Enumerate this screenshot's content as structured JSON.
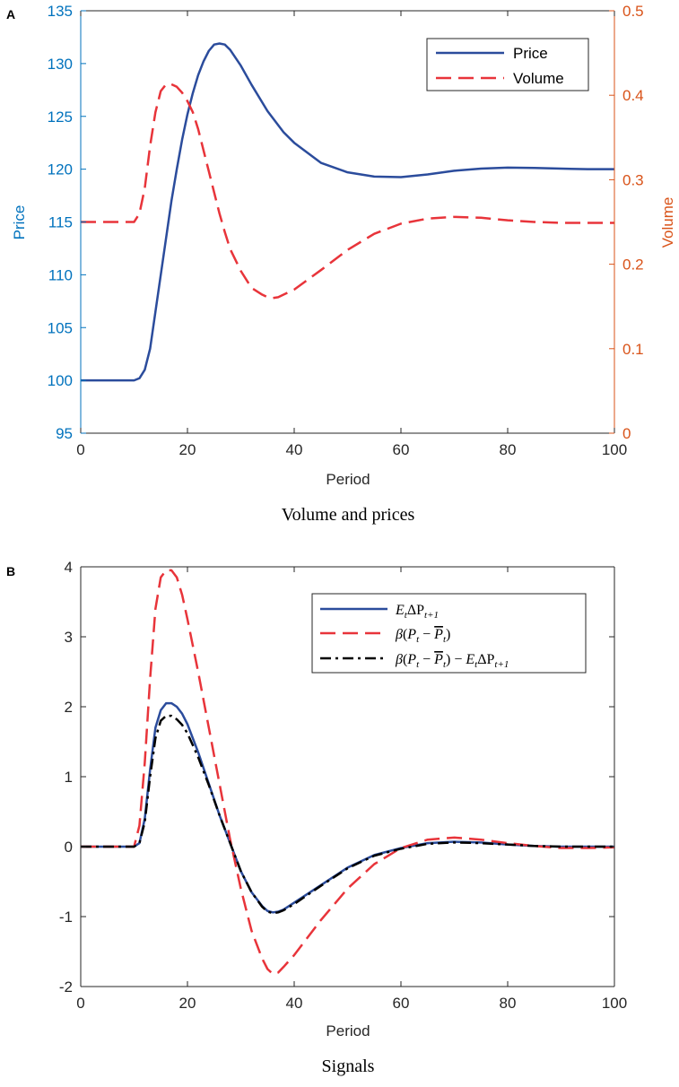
{
  "chart_data": [
    {
      "panel_label": "A",
      "type": "line",
      "caption": "Volume and prices",
      "xlabel": "Period",
      "ylabel": "Price",
      "ylabel_right": "Volume",
      "xlim": [
        0,
        100
      ],
      "ylim": [
        95,
        135
      ],
      "ylim_right": [
        0,
        0.5
      ],
      "xticks": [
        0,
        20,
        40,
        60,
        80,
        100
      ],
      "yticks": [
        95,
        100,
        105,
        110,
        115,
        120,
        125,
        130,
        135
      ],
      "yticks_right": [
        0,
        0.1,
        0.2,
        0.3,
        0.4,
        0.5
      ],
      "grid": false,
      "legend_position": "top-right",
      "colors": {
        "left_axis": "#0072BD",
        "right_axis": "#D95319",
        "price": "#2B4C9C",
        "volume": "#E8343A",
        "axes": "#000000"
      },
      "series": [
        {
          "name": "Price",
          "axis": "left",
          "style": "solid",
          "points": [
            [
              0,
              100
            ],
            [
              10,
              100
            ],
            [
              11,
              100.2
            ],
            [
              12,
              101
            ],
            [
              13,
              103
            ],
            [
              14,
              106.5
            ],
            [
              15,
              110
            ],
            [
              16,
              113.5
            ],
            [
              17,
              117
            ],
            [
              18,
              120
            ],
            [
              19,
              122.8
            ],
            [
              20,
              125.2
            ],
            [
              21,
              127.2
            ],
            [
              22,
              128.9
            ],
            [
              23,
              130.2
            ],
            [
              24,
              131.2
            ],
            [
              25,
              131.8
            ],
            [
              26,
              131.9
            ],
            [
              27,
              131.8
            ],
            [
              28,
              131.3
            ],
            [
              30,
              129.8
            ],
            [
              32,
              128
            ],
            [
              35,
              125.5
            ],
            [
              38,
              123.5
            ],
            [
              40,
              122.5
            ],
            [
              45,
              120.6
            ],
            [
              50,
              119.7
            ],
            [
              55,
              119.3
            ],
            [
              60,
              119.25
            ],
            [
              65,
              119.5
            ],
            [
              70,
              119.85
            ],
            [
              75,
              120.05
            ],
            [
              80,
              120.15
            ],
            [
              85,
              120.12
            ],
            [
              90,
              120.05
            ],
            [
              95,
              120
            ],
            [
              100,
              120
            ]
          ]
        },
        {
          "name": "Volume",
          "axis": "right",
          "style": "dashed",
          "points": [
            [
              0,
              0.25
            ],
            [
              10,
              0.25
            ],
            [
              11,
              0.26
            ],
            [
              12,
              0.29
            ],
            [
              13,
              0.34
            ],
            [
              14,
              0.38
            ],
            [
              15,
              0.405
            ],
            [
              16,
              0.413
            ],
            [
              17,
              0.413
            ],
            [
              18,
              0.41
            ],
            [
              19,
              0.403
            ],
            [
              20,
              0.393
            ],
            [
              21,
              0.38
            ],
            [
              22,
              0.36
            ],
            [
              23,
              0.335
            ],
            [
              24,
              0.31
            ],
            [
              25,
              0.285
            ],
            [
              26,
              0.26
            ],
            [
              27,
              0.238
            ],
            [
              28,
              0.218
            ],
            [
              30,
              0.192
            ],
            [
              32,
              0.172
            ],
            [
              34,
              0.164
            ],
            [
              35,
              0.161
            ],
            [
              36,
              0.16
            ],
            [
              37,
              0.161
            ],
            [
              38,
              0.164
            ],
            [
              40,
              0.17
            ],
            [
              45,
              0.193
            ],
            [
              50,
              0.217
            ],
            [
              55,
              0.236
            ],
            [
              60,
              0.248
            ],
            [
              65,
              0.254
            ],
            [
              70,
              0.256
            ],
            [
              75,
              0.255
            ],
            [
              80,
              0.252
            ],
            [
              85,
              0.25
            ],
            [
              90,
              0.249
            ],
            [
              95,
              0.249
            ],
            [
              100,
              0.249
            ]
          ]
        }
      ]
    },
    {
      "panel_label": "B",
      "type": "line",
      "caption": "Signals",
      "xlabel": "Period",
      "xlim": [
        0,
        100
      ],
      "ylim": [
        -2,
        4
      ],
      "xticks": [
        0,
        20,
        40,
        60,
        80,
        100
      ],
      "yticks": [
        -2,
        -1,
        0,
        1,
        2,
        3,
        4
      ],
      "grid": false,
      "legend_position": "top-right",
      "colors": {
        "signal1": "#2B4C9C",
        "signal2": "#E8343A",
        "signal3": "#000000",
        "axes": "#000000"
      },
      "legend": {
        "signal1": {
          "style": "solid"
        },
        "signal2": {
          "style": "dashed"
        },
        "signal3": {
          "style": "dashdot"
        }
      },
      "series": [
        {
          "key": "signal1",
          "style": "solid",
          "points": [
            [
              0,
              0
            ],
            [
              10,
              0
            ],
            [
              11,
              0.05
            ],
            [
              12,
              0.4
            ],
            [
              13,
              1.1
            ],
            [
              14,
              1.7
            ],
            [
              15,
              1.95
            ],
            [
              16,
              2.05
            ],
            [
              17,
              2.05
            ],
            [
              18,
              2.0
            ],
            [
              19,
              1.9
            ],
            [
              20,
              1.75
            ],
            [
              22,
              1.35
            ],
            [
              24,
              0.9
            ],
            [
              26,
              0.45
            ],
            [
              28,
              0.05
            ],
            [
              30,
              -0.35
            ],
            [
              32,
              -0.65
            ],
            [
              34,
              -0.85
            ],
            [
              35,
              -0.92
            ],
            [
              36,
              -0.94
            ],
            [
              37,
              -0.93
            ],
            [
              38,
              -0.9
            ],
            [
              40,
              -0.8
            ],
            [
              45,
              -0.55
            ],
            [
              50,
              -0.3
            ],
            [
              55,
              -0.12
            ],
            [
              60,
              -0.02
            ],
            [
              65,
              0.05
            ],
            [
              70,
              0.07
            ],
            [
              75,
              0.06
            ],
            [
              80,
              0.03
            ],
            [
              85,
              0.01
            ],
            [
              90,
              0
            ],
            [
              100,
              0
            ]
          ]
        },
        {
          "key": "signal2",
          "style": "dashed",
          "points": [
            [
              0,
              0
            ],
            [
              10,
              0
            ],
            [
              11,
              0.3
            ],
            [
              12,
              1.2
            ],
            [
              13,
              2.4
            ],
            [
              14,
              3.4
            ],
            [
              15,
              3.85
            ],
            [
              16,
              3.95
            ],
            [
              17,
              3.95
            ],
            [
              18,
              3.85
            ],
            [
              19,
              3.6
            ],
            [
              20,
              3.25
            ],
            [
              22,
              2.5
            ],
            [
              24,
              1.7
            ],
            [
              26,
              0.9
            ],
            [
              28,
              0.1
            ],
            [
              30,
              -0.6
            ],
            [
              32,
              -1.2
            ],
            [
              34,
              -1.6
            ],
            [
              35,
              -1.75
            ],
            [
              36,
              -1.82
            ],
            [
              37,
              -1.8
            ],
            [
              38,
              -1.72
            ],
            [
              40,
              -1.55
            ],
            [
              45,
              -1.05
            ],
            [
              50,
              -0.6
            ],
            [
              55,
              -0.25
            ],
            [
              60,
              -0.02
            ],
            [
              65,
              0.1
            ],
            [
              70,
              0.13
            ],
            [
              75,
              0.1
            ],
            [
              80,
              0.05
            ],
            [
              85,
              0.01
            ],
            [
              90,
              -0.02
            ],
            [
              95,
              -0.02
            ],
            [
              100,
              -0.01
            ]
          ]
        },
        {
          "key": "signal3",
          "style": "dashdot",
          "points": [
            [
              0,
              0
            ],
            [
              10,
              0
            ],
            [
              11,
              0.05
            ],
            [
              12,
              0.35
            ],
            [
              13,
              1.0
            ],
            [
              14,
              1.55
            ],
            [
              15,
              1.8
            ],
            [
              16,
              1.87
            ],
            [
              17,
              1.87
            ],
            [
              18,
              1.82
            ],
            [
              19,
              1.74
            ],
            [
              20,
              1.62
            ],
            [
              22,
              1.28
            ],
            [
              24,
              0.88
            ],
            [
              26,
              0.45
            ],
            [
              28,
              0.05
            ],
            [
              30,
              -0.35
            ],
            [
              32,
              -0.65
            ],
            [
              34,
              -0.86
            ],
            [
              35,
              -0.93
            ],
            [
              36,
              -0.95
            ],
            [
              37,
              -0.94
            ],
            [
              38,
              -0.91
            ],
            [
              40,
              -0.82
            ],
            [
              45,
              -0.56
            ],
            [
              50,
              -0.31
            ],
            [
              55,
              -0.13
            ],
            [
              60,
              -0.03
            ],
            [
              65,
              0.04
            ],
            [
              70,
              0.06
            ],
            [
              75,
              0.05
            ],
            [
              80,
              0.03
            ],
            [
              85,
              0.01
            ],
            [
              90,
              0
            ],
            [
              100,
              0
            ]
          ]
        }
      ]
    }
  ]
}
